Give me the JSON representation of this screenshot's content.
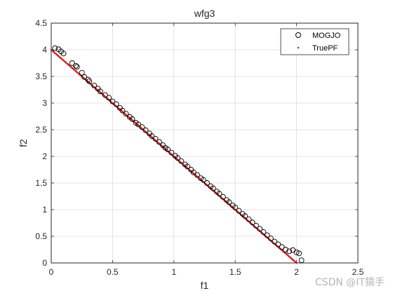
{
  "chart_data": {
    "type": "scatter",
    "title": "wfg3",
    "xlabel": "f1",
    "ylabel": "f2",
    "xlim": [
      0,
      2.5
    ],
    "ylim": [
      0,
      4.5
    ],
    "xticks": [
      "0",
      "0.5",
      "1",
      "1.5",
      "2",
      "2.5"
    ],
    "yticks": [
      "0",
      "0.5",
      "1",
      "1.5",
      "2",
      "2.5",
      "3",
      "3.5",
      "4",
      "4.5"
    ],
    "grid": true,
    "legend_position": "top-right",
    "series": [
      {
        "name": "MOGJO",
        "marker": "open-circle",
        "color": "#000000",
        "points": [
          [
            0.03,
            4.03
          ],
          [
            0.06,
            4.01
          ],
          [
            0.08,
            3.97
          ],
          [
            0.1,
            3.93
          ],
          [
            0.17,
            3.75
          ],
          [
            0.2,
            3.7
          ],
          [
            0.21,
            3.68
          ],
          [
            0.25,
            3.57
          ],
          [
            0.27,
            3.49
          ],
          [
            0.3,
            3.44
          ],
          [
            0.31,
            3.41
          ],
          [
            0.35,
            3.33
          ],
          [
            0.38,
            3.27
          ],
          [
            0.4,
            3.22
          ],
          [
            0.44,
            3.15
          ],
          [
            0.47,
            3.1
          ],
          [
            0.5,
            3.03
          ],
          [
            0.53,
            2.98
          ],
          [
            0.56,
            2.91
          ],
          [
            0.58,
            2.86
          ],
          [
            0.61,
            2.8
          ],
          [
            0.64,
            2.74
          ],
          [
            0.66,
            2.7
          ],
          [
            0.69,
            2.63
          ],
          [
            0.71,
            2.6
          ],
          [
            0.74,
            2.55
          ],
          [
            0.77,
            2.49
          ],
          [
            0.8,
            2.43
          ],
          [
            0.82,
            2.38
          ],
          [
            0.85,
            2.33
          ],
          [
            0.88,
            2.27
          ],
          [
            0.91,
            2.21
          ],
          [
            0.93,
            2.16
          ],
          [
            0.95,
            2.13
          ],
          [
            0.98,
            2.07
          ],
          [
            1.01,
            2.01
          ],
          [
            1.03,
            1.97
          ],
          [
            1.06,
            1.91
          ],
          [
            1.09,
            1.85
          ],
          [
            1.11,
            1.81
          ],
          [
            1.14,
            1.75
          ],
          [
            1.16,
            1.7
          ],
          [
            1.19,
            1.65
          ],
          [
            1.22,
            1.59
          ],
          [
            1.24,
            1.56
          ],
          [
            1.27,
            1.5
          ],
          [
            1.3,
            1.44
          ],
          [
            1.32,
            1.4
          ],
          [
            1.35,
            1.34
          ],
          [
            1.37,
            1.3
          ],
          [
            1.4,
            1.24
          ],
          [
            1.43,
            1.18
          ],
          [
            1.45,
            1.14
          ],
          [
            1.48,
            1.08
          ],
          [
            1.5,
            1.04
          ],
          [
            1.53,
            0.98
          ],
          [
            1.56,
            0.92
          ],
          [
            1.58,
            0.88
          ],
          [
            1.61,
            0.82
          ],
          [
            1.64,
            0.76
          ],
          [
            1.67,
            0.7
          ],
          [
            1.7,
            0.64
          ],
          [
            1.73,
            0.58
          ],
          [
            1.76,
            0.52
          ],
          [
            1.79,
            0.46
          ],
          [
            1.82,
            0.4
          ],
          [
            1.85,
            0.35
          ],
          [
            1.88,
            0.3
          ],
          [
            1.91,
            0.25
          ],
          [
            1.94,
            0.22
          ],
          [
            1.97,
            0.24
          ],
          [
            2.0,
            0.2
          ],
          [
            2.02,
            0.18
          ],
          [
            2.04,
            0.05
          ]
        ]
      },
      {
        "name": "TruePF",
        "marker": "point",
        "color": "#d62020",
        "line": {
          "from": [
            0,
            4
          ],
          "to": [
            2,
            0
          ]
        }
      }
    ]
  },
  "watermark": "CSDN @IT猿手"
}
